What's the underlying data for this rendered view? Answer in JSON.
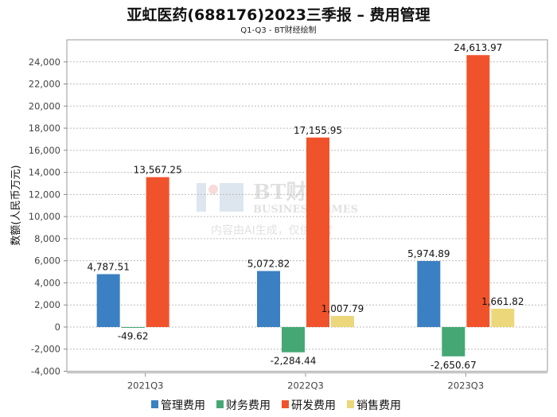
{
  "chart_data": {
    "type": "bar",
    "title": "亚虹医药(688176)2023三季报 – 费用管理",
    "subtitle": "Q1-Q3 - BT财经绘制",
    "xlabel": "",
    "ylabel": "数额(人民币万元)",
    "ylim": [
      -4000,
      26000
    ],
    "yticks": [
      -4000,
      -2000,
      0,
      2000,
      4000,
      6000,
      8000,
      10000,
      12000,
      14000,
      16000,
      18000,
      20000,
      22000,
      24000
    ],
    "grid": true,
    "legend_position": "bottom",
    "categories": [
      "2021Q3",
      "2022Q3",
      "2023Q3"
    ],
    "series": [
      {
        "name": "管理费用",
        "color": "#3a80c2",
        "values": [
          4787.51,
          5072.82,
          5974.89
        ],
        "labels": [
          "4,787.51",
          "5,072.82",
          "5,974.89"
        ]
      },
      {
        "name": "财务费用",
        "color": "#45a874",
        "values": [
          -49.62,
          -2284.44,
          -2650.67
        ],
        "labels": [
          "-49.62",
          "-2,284.44",
          "-2,650.67"
        ]
      },
      {
        "name": "研发费用",
        "color": "#f0532b",
        "values": [
          13567.25,
          17155.95,
          24613.97
        ],
        "labels": [
          "13,567.25",
          "17,155.95",
          "24,613.97"
        ]
      },
      {
        "name": "销售费用",
        "color": "#ecd77b",
        "values": [
          null,
          1007.79,
          1661.82
        ],
        "labels": [
          null,
          "1,007.79",
          "1,661.82"
        ]
      }
    ]
  },
  "watermark": {
    "brand": "BT财经",
    "english": "BUSINESS TIMES",
    "note": "内容由AI生成，仅供参考"
  }
}
